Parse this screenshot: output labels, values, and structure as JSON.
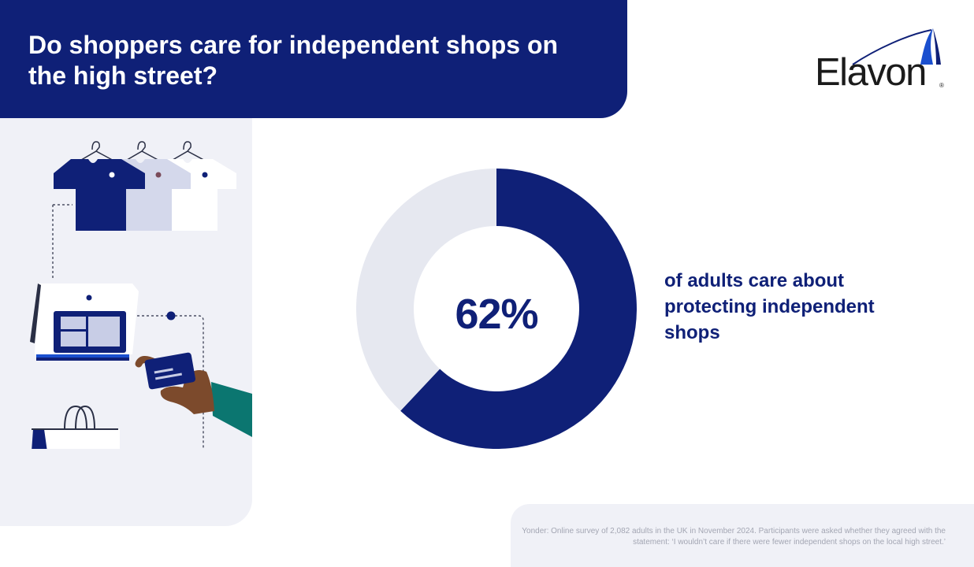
{
  "header": {
    "title": "Do shoppers care for independent shops on the high street?"
  },
  "logo": {
    "text": "Elavon",
    "registered_mark": "®"
  },
  "colors": {
    "navy": "#0f2077",
    "light_gray": "#e6e8f0",
    "panel": "#f0f1f7",
    "teal": "#0b7670"
  },
  "icons": [
    "hanger-icon",
    "tshirt-icon",
    "card-terminal-icon",
    "credit-card-icon",
    "hand-icon",
    "shopping-bag-icon"
  ],
  "chart_data": {
    "type": "pie",
    "donut": true,
    "slices": [
      {
        "label": "of adults care about protecting independent shops",
        "value": 62,
        "color": "#0f2077"
      },
      {
        "label": "",
        "value": 38,
        "color": "#e6e8f0"
      }
    ],
    "center_label": "62%",
    "caption": "of adults care about protecting independent shops"
  },
  "footnote": "Yonder: Online survey of 2,082 adults in the UK in November 2024. Participants were asked whether they agreed with the statement: ‘I wouldn’t care if there were fewer independent shops on the local high street.’"
}
